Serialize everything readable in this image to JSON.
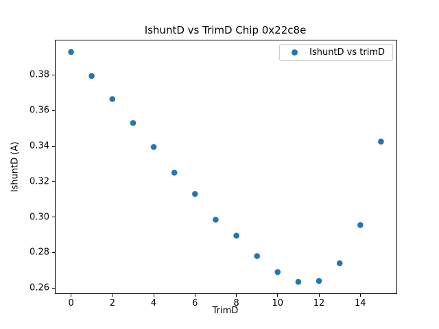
{
  "chart_data": {
    "type": "scatter",
    "title": "IshuntD vs TrimD Chip 0x22c8e",
    "xlabel": "TrimD",
    "ylabel": "IshuntD (A)",
    "legend": {
      "label": "IshuntD vs trimD",
      "position": "upper right"
    },
    "series": [
      {
        "name": "IshuntD vs trimD",
        "x": [
          0,
          1,
          2,
          3,
          4,
          5,
          6,
          7,
          8,
          9,
          10,
          11,
          12,
          13,
          14,
          15
        ],
        "y": [
          0.393,
          0.3795,
          0.3665,
          0.353,
          0.3395,
          0.325,
          0.313,
          0.2985,
          0.2895,
          0.278,
          0.269,
          0.2635,
          0.264,
          0.274,
          0.2955,
          0.3425
        ]
      }
    ],
    "xlim": [
      -0.75,
      15.75
    ],
    "ylim": [
      0.257,
      0.3995
    ],
    "xticks": [
      0,
      2,
      4,
      6,
      8,
      10,
      12,
      14
    ],
    "yticks": [
      0.26,
      0.28,
      0.3,
      0.32,
      0.34,
      0.36,
      0.38
    ],
    "grid": false,
    "marker_color": "#1f77b4",
    "background_color": "#ffffff",
    "spine_color": "#000000"
  }
}
